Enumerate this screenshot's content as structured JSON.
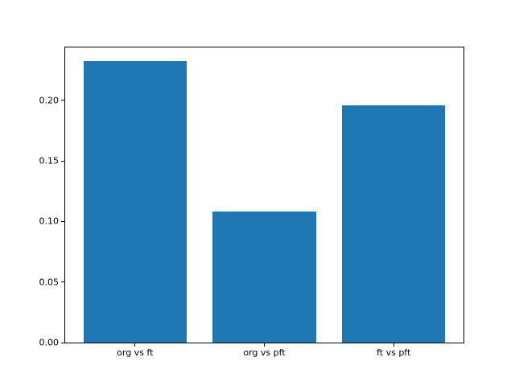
{
  "figure": {
    "background_color": "#ffffff",
    "bar_color": "#1f77b4",
    "axis_color": "#000000",
    "tick_label_color": "#000000"
  },
  "chart_data": {
    "type": "bar",
    "categories": [
      "org vs ft",
      "org vs pft",
      "ft vs pft"
    ],
    "values": [
      0.232,
      0.108,
      0.196
    ],
    "title": "",
    "xlabel": "",
    "ylabel": "",
    "xlim": [
      -0.54,
      2.54
    ],
    "ylim": [
      0,
      0.2436
    ],
    "yticks": [
      0,
      0.05,
      0.1,
      0.15,
      0.2
    ],
    "ytick_labels": [
      "0.00",
      "0.05",
      "0.10",
      "0.15",
      "0.20"
    ],
    "bar_width": 0.8,
    "grid": false,
    "legend": false
  }
}
